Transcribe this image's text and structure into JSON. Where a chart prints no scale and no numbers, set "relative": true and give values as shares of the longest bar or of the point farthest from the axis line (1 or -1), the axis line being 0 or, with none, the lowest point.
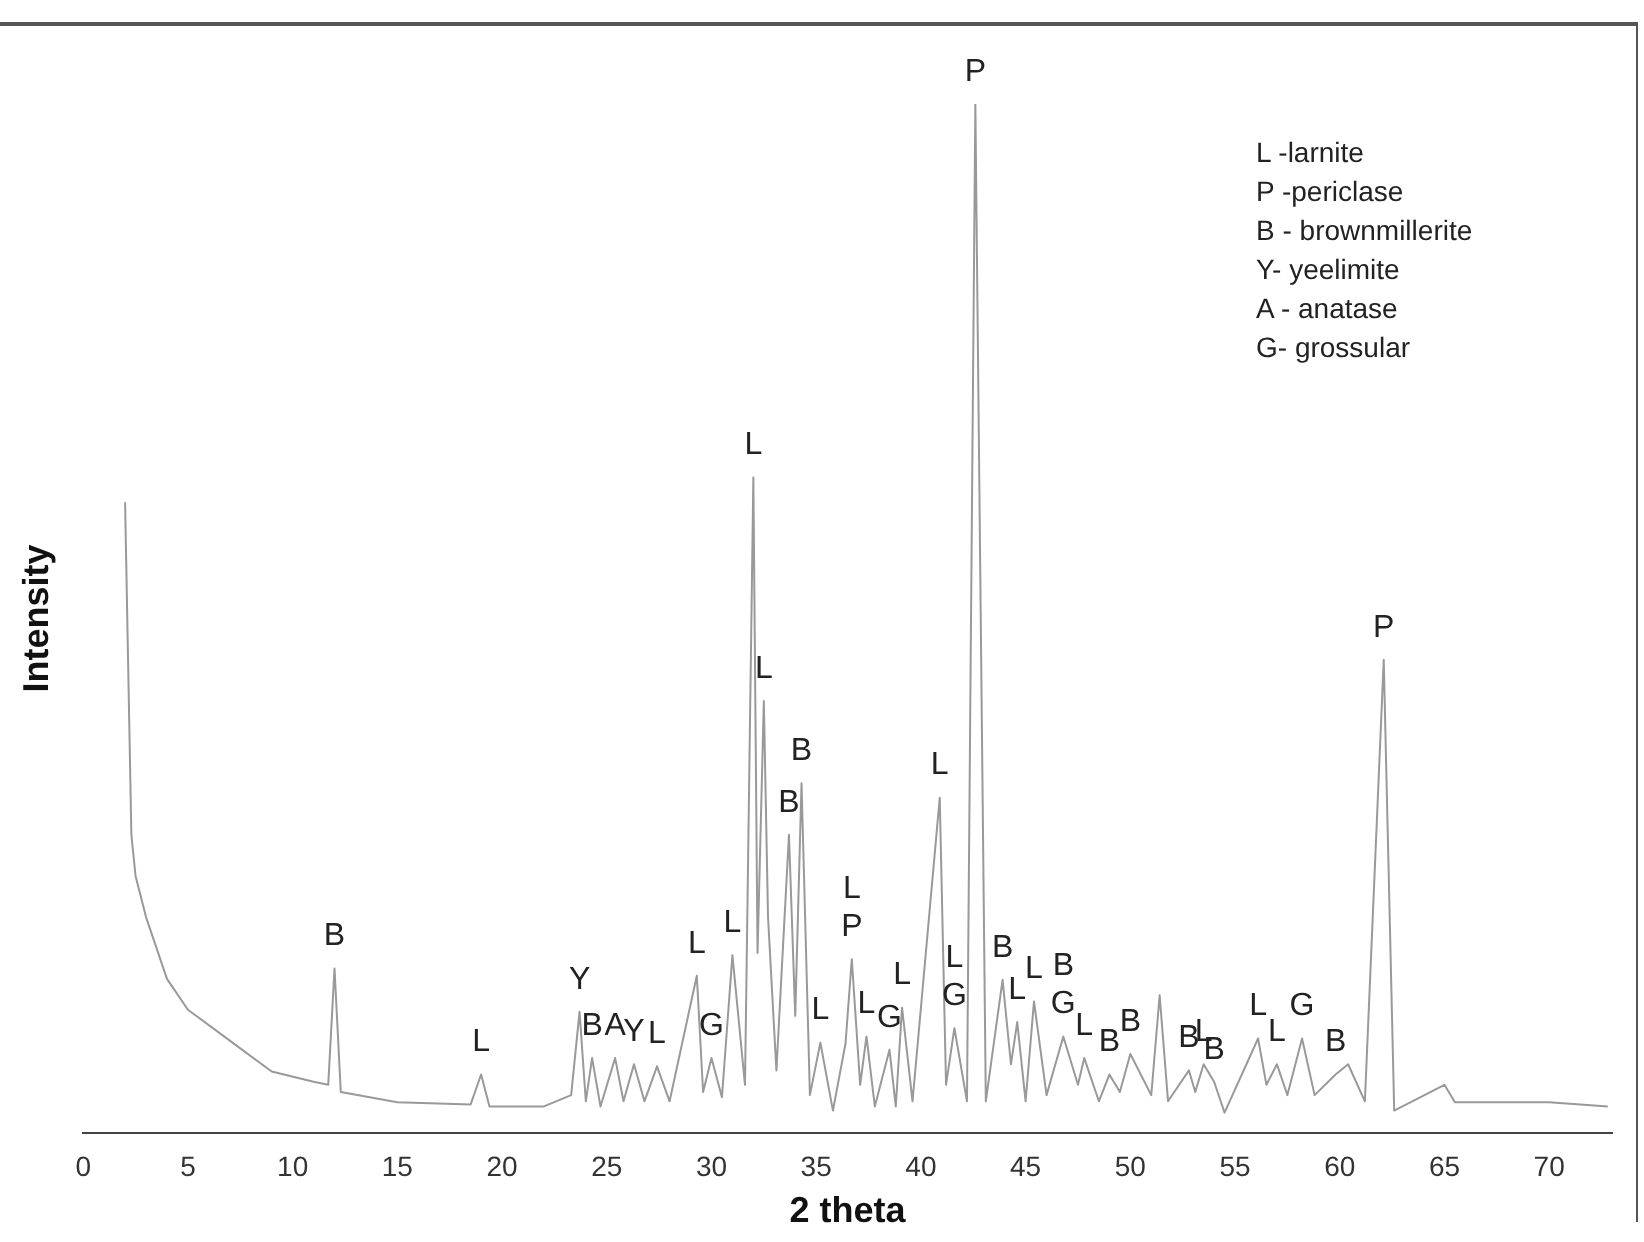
{
  "chart_data": {
    "type": "line",
    "relative": true,
    "xlabel": "2 theta",
    "ylabel": "Intensity",
    "xlim": [
      0,
      73
    ],
    "xticks": [
      0,
      5,
      10,
      15,
      20,
      25,
      30,
      35,
      40,
      45,
      50,
      55,
      60,
      65,
      70
    ],
    "grid": false,
    "legend": false,
    "x": [
      2,
      2.3,
      2.5,
      3,
      4,
      5,
      7,
      9,
      11,
      11.7,
      12,
      12.3,
      15,
      18.5,
      19,
      19.4,
      22,
      23.3,
      23.7,
      24,
      24.3,
      24.7,
      25.4,
      25.8,
      26.3,
      26.8,
      27.4,
      28,
      29.3,
      29.6,
      30,
      30.5,
      31,
      31.6,
      32,
      32.2,
      32.5,
      32.7,
      33.1,
      33.7,
      34,
      34.3,
      34.7,
      35.2,
      35.8,
      36.4,
      36.7,
      37.1,
      37.4,
      37.8,
      38.5,
      38.8,
      39.1,
      39.6,
      40.9,
      41.2,
      41.6,
      42.2,
      42.6,
      43.1,
      43.9,
      44.3,
      44.6,
      45,
      45.4,
      46,
      46.8,
      47.5,
      47.8,
      48.5,
      49,
      49.5,
      50,
      51,
      51.4,
      51.8,
      52.8,
      53.1,
      53.5,
      54,
      54.5,
      56.1,
      56.5,
      57,
      57.5,
      58.2,
      58.8,
      59.8,
      60.4,
      61.2,
      62.1,
      62.6,
      65,
      65.5,
      70,
      72.8
    ],
    "series": [
      {
        "color": "#999999",
        "values": [
          0.613,
          0.29,
          0.25,
          0.21,
          0.15,
          0.12,
          0.09,
          0.06,
          0.05,
          0.047,
          0.16,
          0.04,
          0.03,
          0.028,
          0.057,
          0.026,
          0.026,
          0.037,
          0.118,
          0.031,
          0.073,
          0.026,
          0.073,
          0.031,
          0.067,
          0.031,
          0.065,
          0.031,
          0.153,
          0.04,
          0.073,
          0.035,
          0.173,
          0.047,
          0.637,
          0.175,
          0.42,
          0.21,
          0.061,
          0.29,
          0.114,
          0.34,
          0.037,
          0.088,
          0.022,
          0.087,
          0.169,
          0.047,
          0.094,
          0.026,
          0.081,
          0.026,
          0.122,
          0.031,
          0.326,
          0.047,
          0.102,
          0.031,
          1,
          0.031,
          0.149,
          0.067,
          0.108,
          0.031,
          0.128,
          0.037,
          0.094,
          0.047,
          0.073,
          0.031,
          0.057,
          0.04,
          0.077,
          0.037,
          0.134,
          0.031,
          0.061,
          0.04,
          0.067,
          0.05,
          0.02,
          0.092,
          0.047,
          0.067,
          0.037,
          0.092,
          0.037,
          0.057,
          0.067,
          0.031,
          0.46,
          0.022,
          0.047,
          0.03,
          0.03,
          0.026
        ]
      }
    ],
    "annotations": [
      {
        "text": "B",
        "x": 12,
        "y": 0.16
      },
      {
        "text": "L",
        "x": 19,
        "y": 0.057
      },
      {
        "text": "Y",
        "x": 23.7,
        "y": 0.118
      },
      {
        "text": "B",
        "x": 24.3,
        "y": 0.073
      },
      {
        "text": "A",
        "x": 25.4,
        "y": 0.073
      },
      {
        "text": "Y",
        "x": 26.3,
        "y": 0.067
      },
      {
        "text": "L",
        "x": 27.4,
        "y": 0.065
      },
      {
        "text": "L",
        "x": 29.3,
        "y": 0.153
      },
      {
        "text": "G",
        "x": 30,
        "y": 0.073
      },
      {
        "text": "L",
        "x": 31,
        "y": 0.173
      },
      {
        "text": "L",
        "x": 32,
        "y": 0.637
      },
      {
        "text": "L",
        "x": 32.5,
        "y": 0.42
      },
      {
        "text": "B",
        "x": 33.7,
        "y": 0.29
      },
      {
        "text": "B",
        "x": 34.3,
        "y": 0.34
      },
      {
        "text": "L",
        "x": 35.2,
        "y": 0.088
      },
      {
        "text": "L",
        "x": 36.7,
        "y": 0.169
      },
      {
        "text": "P",
        "x": 36.7,
        "y": 0.169
      },
      {
        "text": "L",
        "x": 37.4,
        "y": 0.094
      },
      {
        "text": "G",
        "x": 38.5,
        "y": 0.081
      },
      {
        "text": "L",
        "x": 39.1,
        "y": 0.122
      },
      {
        "text": "L",
        "x": 40.9,
        "y": 0.326
      },
      {
        "text": "L",
        "x": 41.6,
        "y": 0.102
      },
      {
        "text": "G",
        "x": 41.6,
        "y": 0.102
      },
      {
        "text": "P",
        "x": 42.6,
        "y": 1
      },
      {
        "text": "B",
        "x": 43.9,
        "y": 0.149
      },
      {
        "text": "L",
        "x": 44.6,
        "y": 0.108
      },
      {
        "text": "L",
        "x": 45.4,
        "y": 0.128
      },
      {
        "text": "B",
        "x": 46.8,
        "y": 0.094
      },
      {
        "text": "G",
        "x": 46.8,
        "y": 0.094
      },
      {
        "text": "L",
        "x": 47.8,
        "y": 0.073
      },
      {
        "text": "B",
        "x": 49,
        "y": 0.057
      },
      {
        "text": "B",
        "x": 50,
        "y": 0.077
      },
      {
        "text": "B",
        "x": 52.8,
        "y": 0.061
      },
      {
        "text": "L",
        "x": 53.5,
        "y": 0.067
      },
      {
        "text": "B",
        "x": 54,
        "y": 0.05
      },
      {
        "text": "L",
        "x": 56.1,
        "y": 0.092
      },
      {
        "text": "L",
        "x": 57,
        "y": 0.067
      },
      {
        "text": "G",
        "x": 58.2,
        "y": 0.092
      },
      {
        "text": "B",
        "x": 59.8,
        "y": 0.057
      },
      {
        "text": "P",
        "x": 62.1,
        "y": 0.46
      },
      "L -larnite",
      "P -periclase",
      "B - brownmillerite",
      "Y- yeelimite",
      "A - anatase",
      "G- grossular"
    ]
  }
}
